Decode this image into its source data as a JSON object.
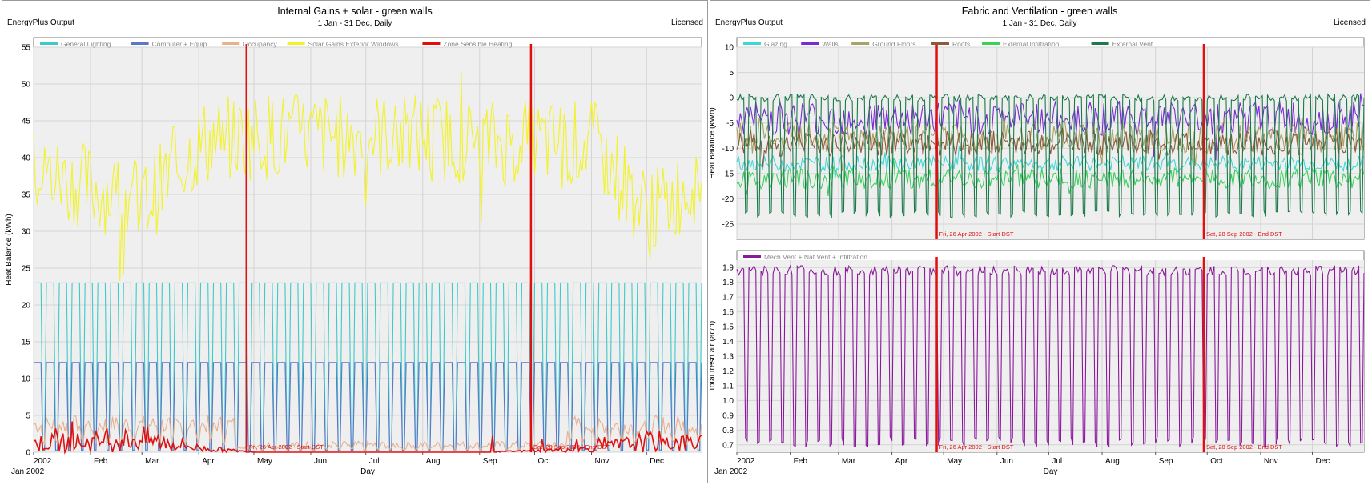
{
  "panels": [
    {
      "title": "Internal Gains + solar - green walls",
      "subtitle": "1 Jan - 31 Dec, Daily",
      "source": "EnergyPlus Output",
      "license": "Licensed"
    },
    {
      "title": "Fabric and Ventilation - green walls",
      "subtitle": "1 Jan - 31 Dec, Daily",
      "source": "EnergyPlus Output",
      "license": "Licensed"
    }
  ],
  "chart_data": [
    {
      "type": "line",
      "panel": 0,
      "ylabel": "Heat Balance (kWh)",
      "xlabel": "Day",
      "ylim": [
        0,
        55
      ],
      "yticks": [
        "0",
        "5",
        "10",
        "15",
        "20",
        "25",
        "30",
        "35",
        "40",
        "45",
        "50",
        "55"
      ],
      "xticks": [
        "2002",
        "Feb",
        "Mar",
        "Apr",
        "May",
        "Jun",
        "Jul",
        "Aug",
        "Sep",
        "Oct",
        "Nov",
        "Dec"
      ],
      "year_label": "Jan  2002",
      "grid": true,
      "legend_position": "top",
      "series": [
        {
          "name": "General Lighting",
          "color": "#3fc9c9",
          "pattern": "square",
          "low": 0.3,
          "high": 23
        },
        {
          "name": "Computer + Equip",
          "color": "#5b77c7",
          "pattern": "square",
          "low": 0.2,
          "high": 12.2
        },
        {
          "name": "Occupancy",
          "color": "#e9b08c",
          "pattern": "occupancy",
          "winter": [
            2.5,
            5
          ],
          "summer": [
            0.5,
            1.5
          ]
        },
        {
          "name": "Solar Gains Exterior Windows",
          "color": "#f2f22a",
          "pattern": "noisy",
          "mean": [
            38,
            36,
            34,
            42,
            43,
            43,
            43,
            43,
            42,
            42,
            42,
            32
          ],
          "amp": 6
        },
        {
          "name": "Zone Sensible Heating",
          "color": "#e01010",
          "pattern": "heating",
          "mean": [
            1.2,
            1.4,
            1.8,
            0.5,
            0,
            0,
            0,
            0,
            0,
            0.2,
            0.5,
            1.5
          ]
        }
      ],
      "annotations": [
        {
          "label": "Fri, 26 Apr 2002 - Start DST",
          "day": 116
        },
        {
          "label": "Sat, 28 Sep 2002 - End DST",
          "day": 271
        }
      ]
    },
    {
      "type": "line",
      "panel": 1,
      "ylabel": "Heat Balance (kWh)",
      "ylim": [
        -28,
        10
      ],
      "yticks": [
        "10",
        "5",
        "0",
        "-5",
        "-10",
        "-15",
        "-20",
        "-25"
      ],
      "legend_position": "top",
      "grid": true,
      "series": [
        {
          "name": "Glazing",
          "color": "#40d6d6",
          "pattern": "noisy",
          "mean": -13,
          "amp": 1.5
        },
        {
          "name": "Walls",
          "color": "#7a2ad6",
          "pattern": "noisy",
          "mean": -4,
          "amp": 3.5
        },
        {
          "name": "Ground Floors",
          "color": "#a7a267",
          "pattern": "noisy",
          "mean": -8,
          "amp": 3
        },
        {
          "name": "Roofs",
          "color": "#8a5a3a",
          "pattern": "noisy",
          "mean": -9,
          "amp": 2.5
        },
        {
          "name": "External Infiltration",
          "color": "#3ad05a",
          "pattern": "noisy",
          "mean": -16,
          "amp": 2
        },
        {
          "name": "External Vent.",
          "color": "#1a7a4a",
          "pattern": "weekly",
          "low": -23,
          "high": 0
        }
      ],
      "annotations": [
        {
          "label": "Fri, 26 Apr 2002 - Start DST",
          "day": 116
        },
        {
          "label": "Sat, 28 Sep 2002 - End DST",
          "day": 271
        }
      ]
    },
    {
      "type": "line",
      "panel": 1,
      "ylabel": "Total fresh air (ac/h)",
      "xlabel": "Day",
      "ylim": [
        0.65,
        1.95
      ],
      "yticks": [
        "1.9",
        "1.8",
        "1.7",
        "1.6",
        "1.5",
        "1.4",
        "1.3",
        "1.2",
        "1.1",
        "1.0",
        "0.9",
        "0.8",
        "0.7"
      ],
      "xticks": [
        "2002",
        "Feb",
        "Mar",
        "Apr",
        "May",
        "Jun",
        "Jul",
        "Aug",
        "Sep",
        "Oct",
        "Nov",
        "Dec"
      ],
      "year_label": "Jan  2002",
      "grid": true,
      "legend_position": "top",
      "series": [
        {
          "name": "Mech Vent + Nat Vent + Infiltration",
          "color": "#8a1a9a",
          "pattern": "weekly",
          "low": 0.72,
          "high": 1.88
        }
      ],
      "annotations": [
        {
          "label": "Fri, 26 Apr 2002 - Start DST",
          "day": 116
        },
        {
          "label": "Sat, 28 Sep 2002 - End DST",
          "day": 271
        }
      ]
    }
  ]
}
